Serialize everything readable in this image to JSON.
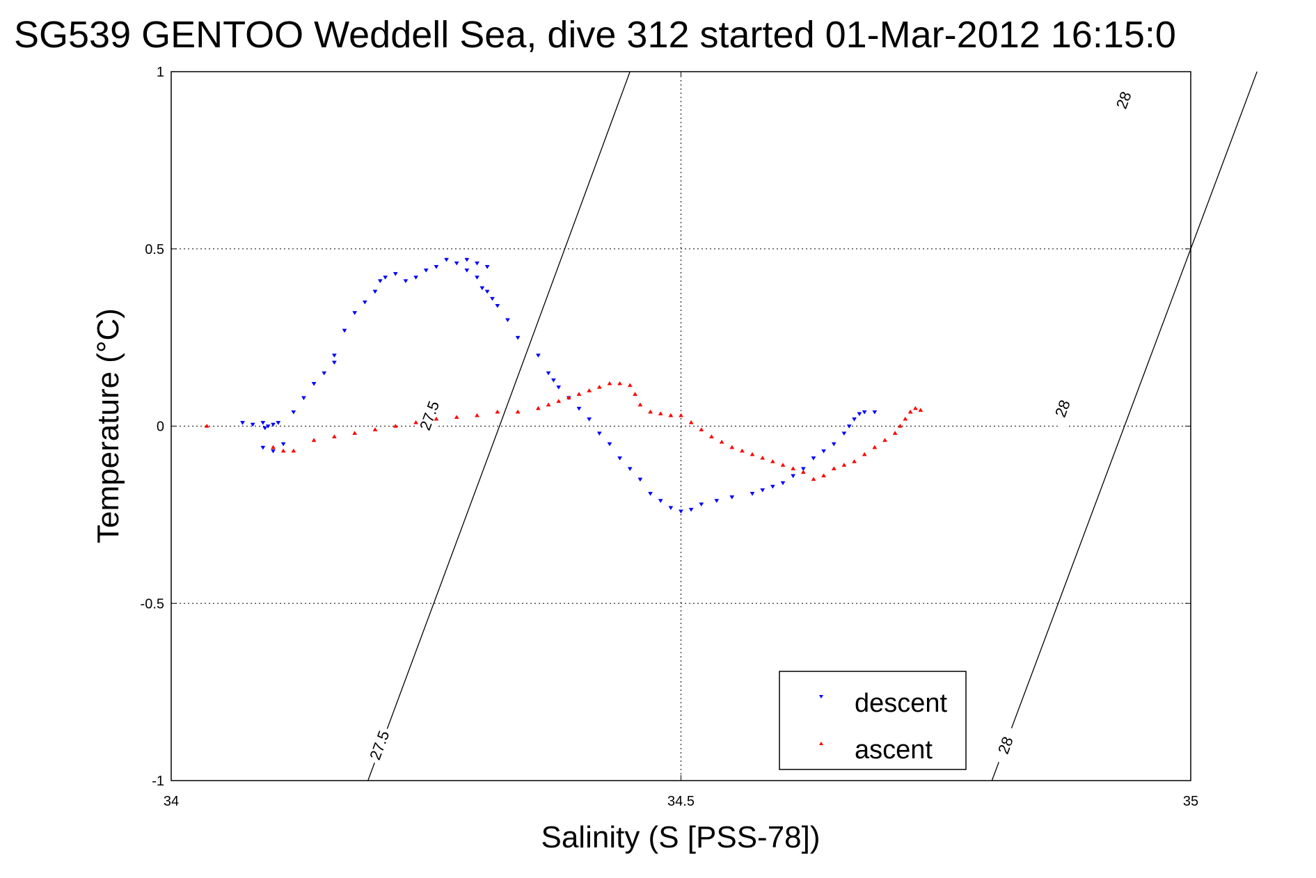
{
  "chart_data": {
    "type": "scatter",
    "title": "SG539 GENTOO Weddell Sea, dive 312 started 01-Mar-2012 16:15:0",
    "xlabel": "Salinity (S [PSS-78])",
    "ylabel": "Temperature (°C)",
    "xlim": [
      34,
      35
    ],
    "ylim": [
      -1,
      1
    ],
    "x_ticks": [
      34,
      34.5,
      35
    ],
    "x_tick_labels": [
      "34",
      "34.5",
      "35"
    ],
    "y_ticks": [
      -1,
      -0.5,
      0,
      0.5,
      1
    ],
    "y_tick_labels": [
      "-1",
      "-0.5",
      "0",
      "0.5",
      "1"
    ],
    "grid": true,
    "legend_position": "bottom-right",
    "density_contours": [
      {
        "label": "27.5",
        "points": [
          [
            34.193,
            -1
          ],
          [
            34.322,
            0
          ],
          [
            34.322,
            0
          ],
          [
            34.45,
            1
          ]
        ],
        "label_positions": [
          [
            34.204,
            -0.9
          ],
          [
            34.253,
            0.03
          ]
        ]
      },
      {
        "label": "28",
        "points": [
          [
            34.805,
            -1
          ],
          [
            34.935,
            0
          ],
          [
            35.065,
            1
          ]
        ],
        "label_positions": [
          [
            34.818,
            -0.9
          ],
          [
            34.874,
            0.05
          ],
          [
            34.934,
            0.92
          ]
        ]
      }
    ],
    "series": [
      {
        "name": "descent",
        "color": "#0000ff",
        "marker": "triangle-down",
        "points": [
          [
            34.07,
            0.01
          ],
          [
            34.08,
            0.005
          ],
          [
            34.09,
            0.01
          ],
          [
            34.095,
            0
          ],
          [
            34.1,
            0.005
          ],
          [
            34.105,
            0.01
          ],
          [
            34.092,
            -0.005
          ],
          [
            34.09,
            -0.06
          ],
          [
            34.1,
            -0.07
          ],
          [
            34.11,
            -0.05
          ],
          [
            34.12,
            0.04
          ],
          [
            34.13,
            0.08
          ],
          [
            34.14,
            0.12
          ],
          [
            34.15,
            0.15
          ],
          [
            34.16,
            0.18
          ],
          [
            34.16,
            0.2
          ],
          [
            34.17,
            0.27
          ],
          [
            34.18,
            0.32
          ],
          [
            34.19,
            0.35
          ],
          [
            34.2,
            0.38
          ],
          [
            34.205,
            0.41
          ],
          [
            34.21,
            0.42
          ],
          [
            34.22,
            0.43
          ],
          [
            34.23,
            0.41
          ],
          [
            34.24,
            0.42
          ],
          [
            34.25,
            0.44
          ],
          [
            34.26,
            0.45
          ],
          [
            34.27,
            0.47
          ],
          [
            34.28,
            0.46
          ],
          [
            34.29,
            0.47
          ],
          [
            34.3,
            0.46
          ],
          [
            34.31,
            0.45
          ],
          [
            34.29,
            0.44
          ],
          [
            34.3,
            0.42
          ],
          [
            34.305,
            0.39
          ],
          [
            34.31,
            0.38
          ],
          [
            34.315,
            0.36
          ],
          [
            34.32,
            0.34
          ],
          [
            34.33,
            0.3
          ],
          [
            34.34,
            0.25
          ],
          [
            34.36,
            0.2
          ],
          [
            34.37,
            0.15
          ],
          [
            34.375,
            0.13
          ],
          [
            34.38,
            0.11
          ],
          [
            34.39,
            0.08
          ],
          [
            34.4,
            0.05
          ],
          [
            34.41,
            0.02
          ],
          [
            34.42,
            -0.02
          ],
          [
            34.43,
            -0.05
          ],
          [
            34.44,
            -0.09
          ],
          [
            34.45,
            -0.12
          ],
          [
            34.46,
            -0.15
          ],
          [
            34.47,
            -0.19
          ],
          [
            34.48,
            -0.21
          ],
          [
            34.49,
            -0.23
          ],
          [
            34.5,
            -0.24
          ],
          [
            34.51,
            -0.235
          ],
          [
            34.52,
            -0.22
          ],
          [
            34.535,
            -0.21
          ],
          [
            34.55,
            -0.2
          ],
          [
            34.57,
            -0.19
          ],
          [
            34.58,
            -0.18
          ],
          [
            34.59,
            -0.17
          ],
          [
            34.6,
            -0.16
          ],
          [
            34.61,
            -0.14
          ],
          [
            34.62,
            -0.12
          ],
          [
            34.63,
            -0.09
          ],
          [
            34.64,
            -0.07
          ],
          [
            34.65,
            -0.05
          ],
          [
            34.66,
            -0.02
          ],
          [
            34.665,
            0
          ],
          [
            34.67,
            0.02
          ],
          [
            34.675,
            0.035
          ],
          [
            34.68,
            0.04
          ],
          [
            34.69,
            0.04
          ]
        ]
      },
      {
        "name": "ascent",
        "color": "#ff0000",
        "marker": "triangle-up",
        "points": [
          [
            34.035,
            0
          ],
          [
            34.1,
            -0.06
          ],
          [
            34.11,
            -0.07
          ],
          [
            34.12,
            -0.07
          ],
          [
            34.14,
            -0.04
          ],
          [
            34.16,
            -0.03
          ],
          [
            34.18,
            -0.02
          ],
          [
            34.2,
            -0.01
          ],
          [
            34.22,
            0
          ],
          [
            34.24,
            0.01
          ],
          [
            34.26,
            0.02
          ],
          [
            34.28,
            0.025
          ],
          [
            34.3,
            0.03
          ],
          [
            34.32,
            0.04
          ],
          [
            34.34,
            0.04
          ],
          [
            34.36,
            0.05
          ],
          [
            34.37,
            0.06
          ],
          [
            34.38,
            0.07
          ],
          [
            34.39,
            0.08
          ],
          [
            34.4,
            0.09
          ],
          [
            34.41,
            0.1
          ],
          [
            34.42,
            0.11
          ],
          [
            34.43,
            0.12
          ],
          [
            34.44,
            0.12
          ],
          [
            34.45,
            0.115
          ],
          [
            34.455,
            0.09
          ],
          [
            34.46,
            0.06
          ],
          [
            34.47,
            0.04
          ],
          [
            34.48,
            0.035
          ],
          [
            34.49,
            0.03
          ],
          [
            34.5,
            0.03
          ],
          [
            34.51,
            0.01
          ],
          [
            34.52,
            -0.01
          ],
          [
            34.53,
            -0.03
          ],
          [
            34.54,
            -0.045
          ],
          [
            34.55,
            -0.06
          ],
          [
            34.56,
            -0.07
          ],
          [
            34.57,
            -0.08
          ],
          [
            34.58,
            -0.09
          ],
          [
            34.59,
            -0.1
          ],
          [
            34.6,
            -0.11
          ],
          [
            34.61,
            -0.12
          ],
          [
            34.62,
            -0.13
          ],
          [
            34.63,
            -0.15
          ],
          [
            34.64,
            -0.14
          ],
          [
            34.65,
            -0.12
          ],
          [
            34.66,
            -0.11
          ],
          [
            34.67,
            -0.1
          ],
          [
            34.68,
            -0.08
          ],
          [
            34.69,
            -0.06
          ],
          [
            34.7,
            -0.04
          ],
          [
            34.71,
            -0.02
          ],
          [
            34.715,
            0
          ],
          [
            34.72,
            0.02
          ],
          [
            34.725,
            0.04
          ],
          [
            34.73,
            0.05
          ],
          [
            34.735,
            0.045
          ]
        ]
      }
    ]
  }
}
